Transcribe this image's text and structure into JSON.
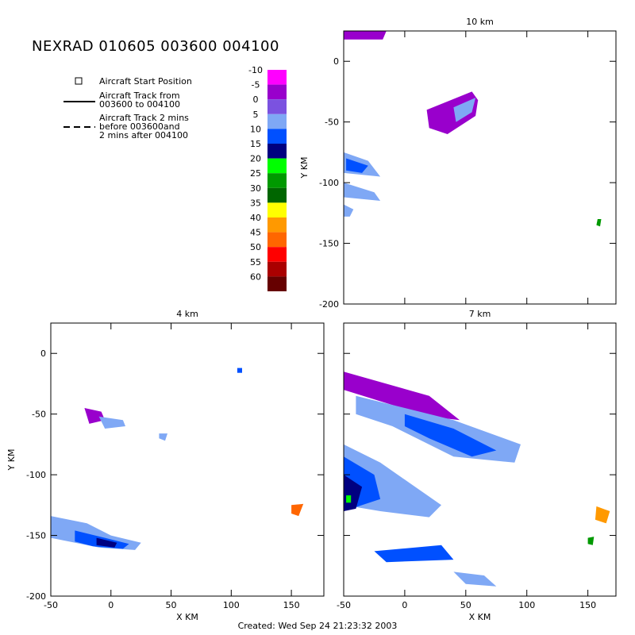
{
  "title": "NEXRAD 010605 003600 004100",
  "footer": "Created: Wed Sep 24 21:23:32 2003",
  "legend": {
    "start_label": "Aircraft Start Position",
    "track_lines": [
      "Aircraft Track from",
      "003600 to 004100"
    ],
    "extended_lines": [
      "Aircraft Track 2 mins",
      "before 003600and",
      "2 mins after 004100"
    ]
  },
  "colorbar": {
    "labels": [
      "-10",
      "-5",
      "0",
      "5",
      "10",
      "15",
      "20",
      "25",
      "30",
      "35",
      "40",
      "45",
      "50",
      "55",
      "60"
    ],
    "colors": [
      "#ff00ff",
      "#9900cc",
      "#7b52e0",
      "#7fa8f5",
      "#0050ff",
      "#000080",
      "#00ff00",
      "#009900",
      "#006600",
      "#ffff00",
      "#ff9900",
      "#ff6600",
      "#ff0000",
      "#aa0000",
      "#660000"
    ]
  },
  "chart_data": [
    {
      "type": "heatmap",
      "title": "10 km",
      "xlabel": "",
      "ylabel": "Y KM",
      "xlim": [
        -50,
        173
      ],
      "ylim": [
        -200,
        25
      ],
      "x_ticks": [],
      "y_ticks": [
        "0",
        "-50",
        "-100",
        "-150",
        "-200"
      ],
      "y_tick_values": [
        0,
        -50,
        -100,
        -150,
        -200
      ],
      "x_tick_values": [
        -50,
        0,
        50,
        100,
        150
      ],
      "show_y_ticklabels": true,
      "show_x_ticklabels": false,
      "echo_regions": [
        {
          "name": "bands NE",
          "color_index": 1,
          "points": [
            [
              18,
              -40
            ],
            [
              55,
              -25
            ],
            [
              60,
              -32
            ],
            [
              58,
              -45
            ],
            [
              35,
              -60
            ],
            [
              20,
              -55
            ]
          ]
        },
        {
          "name": "bands NE inner",
          "color_index": 3,
          "points": [
            [
              40,
              -38
            ],
            [
              58,
              -30
            ],
            [
              55,
              -42
            ],
            [
              42,
              -50
            ]
          ]
        },
        {
          "name": "west band 1",
          "color_index": 3,
          "points": [
            [
              -50,
              -75
            ],
            [
              -30,
              -82
            ],
            [
              -20,
              -95
            ],
            [
              -50,
              -92
            ]
          ]
        },
        {
          "name": "west band 1 core",
          "color_index": 4,
          "points": [
            [
              -48,
              -80
            ],
            [
              -30,
              -86
            ],
            [
              -35,
              -92
            ],
            [
              -48,
              -90
            ]
          ]
        },
        {
          "name": "west band 2",
          "color_index": 3,
          "points": [
            [
              -50,
              -100
            ],
            [
              -25,
              -108
            ],
            [
              -20,
              -115
            ],
            [
              -50,
              -112
            ]
          ]
        },
        {
          "name": "west band 3",
          "color_index": 3,
          "points": [
            [
              -50,
              -118
            ],
            [
              -42,
              -122
            ],
            [
              -45,
              -128
            ],
            [
              -50,
              -128
            ]
          ]
        },
        {
          "name": "top fringe",
          "color_index": 1,
          "points": [
            [
              -50,
              25
            ],
            [
              -15,
              25
            ],
            [
              -18,
              18
            ],
            [
              -50,
              18
            ]
          ]
        },
        {
          "name": "east cell",
          "color_index": 7,
          "points": [
            [
              158,
              -130
            ],
            [
              161,
              -130
            ],
            [
              160,
              -136
            ],
            [
              157,
              -135
            ]
          ]
        }
      ]
    },
    {
      "type": "heatmap",
      "title": "4 km",
      "xlabel": "X KM",
      "ylabel": "Y KM",
      "xlim": [
        -50,
        177
      ],
      "ylim": [
        -200,
        25
      ],
      "x_ticks": [
        "-50",
        "0",
        "50",
        "100",
        "150"
      ],
      "y_ticks": [
        "0",
        "-50",
        "-100",
        "-150",
        "-200"
      ],
      "y_tick_values": [
        0,
        -50,
        -100,
        -150,
        -200
      ],
      "x_tick_values": [
        -50,
        0,
        50,
        100,
        150
      ],
      "show_y_ticklabels": true,
      "show_x_ticklabels": true,
      "echo_regions": [
        {
          "name": "small NW cell",
          "color_index": 1,
          "points": [
            [
              -22,
              -45
            ],
            [
              -8,
              -48
            ],
            [
              -5,
              -55
            ],
            [
              -18,
              -58
            ]
          ]
        },
        {
          "name": "small NW cell b",
          "color_index": 3,
          "points": [
            [
              -10,
              -52
            ],
            [
              10,
              -55
            ],
            [
              12,
              -60
            ],
            [
              -5,
              -62
            ]
          ]
        },
        {
          "name": "isolated speck",
          "color_index": 4,
          "points": [
            [
              105,
              -12
            ],
            [
              109,
              -12
            ],
            [
              109,
              -16
            ],
            [
              105,
              -16
            ]
          ]
        },
        {
          "name": "mid speck",
          "color_index": 3,
          "points": [
            [
              40,
              -66
            ],
            [
              47,
              -66
            ],
            [
              45,
              -72
            ],
            [
              40,
              -70
            ]
          ]
        },
        {
          "name": "SW band",
          "color_index": 3,
          "points": [
            [
              -50,
              -134
            ],
            [
              -20,
              -140
            ],
            [
              0,
              -150
            ],
            [
              25,
              -156
            ],
            [
              20,
              -162
            ],
            [
              -10,
              -160
            ],
            [
              -50,
              -152
            ]
          ]
        },
        {
          "name": "SW band core",
          "color_index": 4,
          "points": [
            [
              -30,
              -146
            ],
            [
              -5,
              -152
            ],
            [
              15,
              -157
            ],
            [
              10,
              -161
            ],
            [
              -15,
              -159
            ],
            [
              -30,
              -155
            ]
          ]
        },
        {
          "name": "SW band dark",
          "color_index": 5,
          "points": [
            [
              -12,
              -152
            ],
            [
              5,
              -156
            ],
            [
              3,
              -160
            ],
            [
              -12,
              -158
            ]
          ]
        },
        {
          "name": "east cell",
          "color_index": 11,
          "points": [
            [
              150,
              -125
            ],
            [
              160,
              -124
            ],
            [
              156,
              -134
            ],
            [
              150,
              -132
            ]
          ]
        }
      ]
    },
    {
      "type": "heatmap",
      "title": "7 km",
      "xlabel": "X KM",
      "ylabel": "",
      "xlim": [
        -50,
        173
      ],
      "ylim": [
        -200,
        25
      ],
      "x_ticks": [
        "-50",
        "0",
        "50",
        "100",
        "150"
      ],
      "y_ticks": [],
      "y_tick_values": [
        0,
        -50,
        -100,
        -150,
        -200
      ],
      "x_tick_values": [
        -50,
        0,
        50,
        100,
        150
      ],
      "show_y_ticklabels": false,
      "show_x_ticklabels": true,
      "echo_regions": [
        {
          "name": "north fringe",
          "color_index": 1,
          "points": [
            [
              -50,
              -15
            ],
            [
              20,
              -35
            ],
            [
              45,
              -55
            ],
            [
              20,
              -52
            ],
            [
              -50,
              -30
            ]
          ]
        },
        {
          "name": "main band",
          "color_index": 3,
          "points": [
            [
              -40,
              -35
            ],
            [
              40,
              -55
            ],
            [
              95,
              -75
            ],
            [
              90,
              -90
            ],
            [
              40,
              -85
            ],
            [
              -10,
              -60
            ],
            [
              -40,
              -50
            ]
          ]
        },
        {
          "name": "main band core",
          "color_index": 4,
          "points": [
            [
              0,
              -50
            ],
            [
              40,
              -62
            ],
            [
              75,
              -80
            ],
            [
              55,
              -85
            ],
            [
              20,
              -70
            ],
            [
              0,
              -60
            ]
          ]
        },
        {
          "name": "west mass",
          "color_index": 3,
          "points": [
            [
              -50,
              -75
            ],
            [
              -20,
              -90
            ],
            [
              30,
              -125
            ],
            [
              20,
              -135
            ],
            [
              -20,
              -130
            ],
            [
              -50,
              -125
            ]
          ]
        },
        {
          "name": "west mass core",
          "color_index": 4,
          "points": [
            [
              -50,
              -85
            ],
            [
              -25,
              -100
            ],
            [
              -20,
              -120
            ],
            [
              -50,
              -130
            ]
          ]
        },
        {
          "name": "west mass dark",
          "color_index": 5,
          "points": [
            [
              -50,
              -100
            ],
            [
              -35,
              -110
            ],
            [
              -40,
              -128
            ],
            [
              -50,
              -130
            ]
          ]
        },
        {
          "name": "green speck",
          "color_index": 6,
          "points": [
            [
              -48,
              -117
            ],
            [
              -44,
              -117
            ],
            [
              -44,
              -123
            ],
            [
              -48,
              -123
            ]
          ]
        },
        {
          "name": "south band",
          "color_index": 4,
          "points": [
            [
              -25,
              -163
            ],
            [
              30,
              -158
            ],
            [
              40,
              -170
            ],
            [
              -15,
              -172
            ]
          ]
        },
        {
          "name": "south fringe",
          "color_index": 3,
          "points": [
            [
              40,
              -180
            ],
            [
              65,
              -183
            ],
            [
              75,
              -192
            ],
            [
              50,
              -190
            ]
          ]
        },
        {
          "name": "east cell",
          "color_index": 10,
          "points": [
            [
              157,
              -126
            ],
            [
              168,
              -130
            ],
            [
              165,
              -140
            ],
            [
              156,
              -137
            ]
          ]
        },
        {
          "name": "east speck",
          "color_index": 7,
          "points": [
            [
              150,
              -152
            ],
            [
              155,
              -151
            ],
            [
              154,
              -158
            ],
            [
              150,
              -157
            ]
          ]
        }
      ]
    }
  ]
}
